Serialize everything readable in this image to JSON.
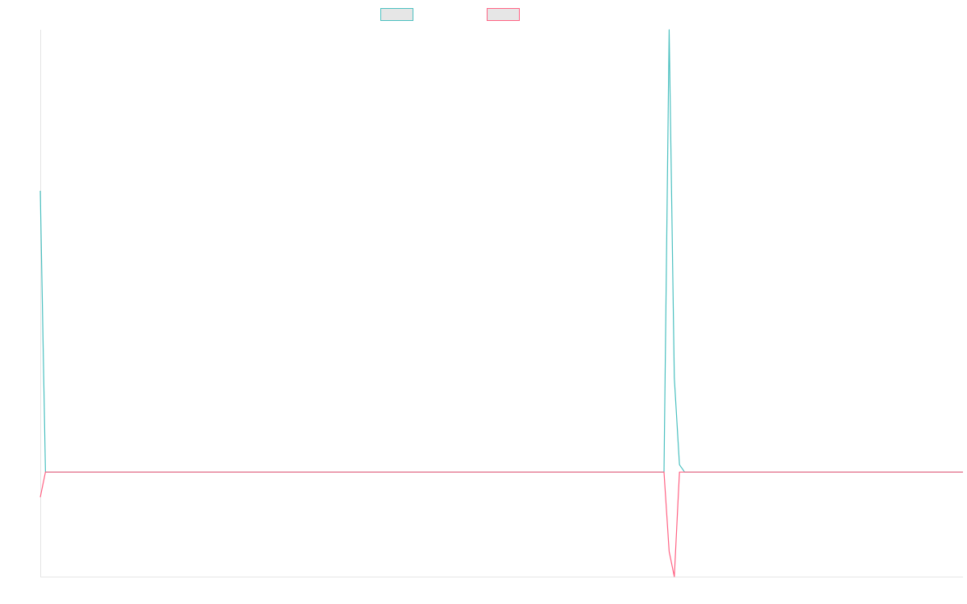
{
  "chart_data": {
    "type": "line",
    "x": [
      0,
      1,
      121,
      122,
      123,
      124,
      125,
      179
    ],
    "xlim": [
      0,
      179
    ],
    "ylim": [
      -1,
      4.23
    ],
    "legend": "top",
    "series": [
      {
        "color": "#4bc0c0",
        "values": [
          2.69,
          0,
          0,
          4.23,
          0.9,
          0.07,
          0,
          0
        ]
      },
      {
        "color": "#ff6384",
        "values": [
          -0.24,
          0,
          0,
          -0.76,
          -1,
          0,
          0,
          0
        ]
      }
    ]
  }
}
